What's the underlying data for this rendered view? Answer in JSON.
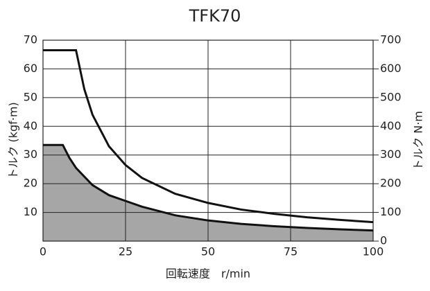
{
  "chart_data": {
    "type": "line",
    "title": "TFK70",
    "x_label": "回転速度　r/min",
    "y_label": "トルク (kgf·m)",
    "y2_label": "トルク N·m",
    "xlim": [
      0,
      100
    ],
    "xticks": [
      0,
      25,
      50,
      75,
      100
    ],
    "ylim": [
      0,
      70
    ],
    "yticks": [
      10,
      20,
      30,
      40,
      50,
      60,
      70
    ],
    "y2lim": [
      0,
      700
    ],
    "y2ticks": [
      0,
      100,
      200,
      300,
      400,
      500,
      600,
      700
    ],
    "grid": true,
    "series": [
      {
        "color": "#111111",
        "x": [
          0,
          10,
          12.5,
          15,
          20,
          25,
          30,
          40,
          50,
          60,
          70,
          80,
          90,
          100
        ],
        "values": [
          66.5,
          66.5,
          53,
          44,
          33,
          26.5,
          22,
          16.5,
          13.3,
          11,
          9.5,
          8.3,
          7.4,
          6.6
        ]
      },
      {
        "color": "#111111",
        "fill": "#a6a6a6",
        "x": [
          0,
          6,
          8,
          10,
          15,
          20,
          25,
          30,
          40,
          50,
          60,
          70,
          80,
          90,
          100
        ],
        "values": [
          33.5,
          33.5,
          29,
          25.5,
          19.5,
          16,
          14,
          12,
          9,
          7.2,
          6,
          5.2,
          4.6,
          4.1,
          3.7
        ]
      }
    ]
  }
}
